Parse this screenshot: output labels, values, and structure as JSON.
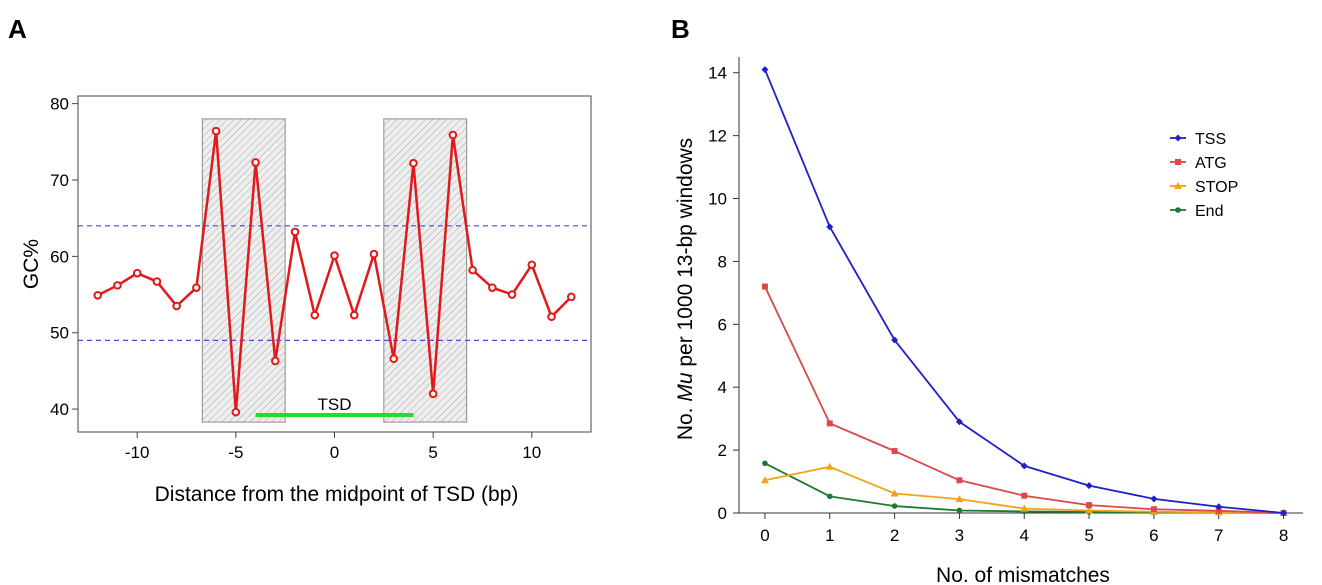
{
  "chart_data": [
    {
      "panel": "A",
      "type": "line",
      "xlabel": "Distance from the midpoint of TSD (bp)",
      "ylabel": "GC%",
      "xlim": [
        -13,
        13
      ],
      "ylim": [
        37,
        81
      ],
      "xticks": [
        -10,
        -5,
        0,
        5,
        10
      ],
      "yticks": [
        40,
        50,
        60,
        70,
        80
      ],
      "x": [
        -12,
        -11,
        -10,
        -9,
        -8,
        -7,
        -6,
        -5,
        -4,
        -3,
        -2,
        -1,
        0,
        1,
        2,
        3,
        4,
        5,
        6,
        7,
        8,
        9,
        10,
        11,
        12
      ],
      "series": [
        {
          "values": [
            54.9,
            56.2,
            57.8,
            56.7,
            53.5,
            55.9,
            76.4,
            39.6,
            72.3,
            46.3,
            63.2,
            52.3,
            60.1,
            52.3,
            60.3,
            46.6,
            72.2,
            42.0,
            75.9,
            58.2,
            55.9,
            55.0,
            58.9,
            52.1,
            54.7
          ],
          "color": "#e01a1a"
        }
      ],
      "reference_lines": [
        64,
        49
      ],
      "reference_color": "#4a4ae0",
      "highlight_regions": [
        [
          -6.7,
          -2.5
        ],
        [
          2.5,
          6.7
        ]
      ],
      "tsd_bar": {
        "label": "TSD",
        "x": [
          -4,
          4
        ],
        "color": "#22dd22"
      },
      "grid": false
    },
    {
      "panel": "B",
      "type": "line",
      "xlabel": "No. of mismatches",
      "ylabel_parts": [
        "No. ",
        "Mu",
        " per 1000 13-bp windows"
      ],
      "xlim": [
        -0.4,
        8.3
      ],
      "ylim": [
        0,
        14.5
      ],
      "xticks": [
        0,
        1,
        2,
        3,
        4,
        5,
        6,
        7,
        8
      ],
      "yticks": [
        0,
        2,
        4,
        6,
        8,
        10,
        12,
        14
      ],
      "x": [
        0,
        1,
        2,
        3,
        4,
        5,
        6,
        7,
        8
      ],
      "legend_position": "top-right",
      "grid": false,
      "series": [
        {
          "name": "TSS",
          "color": "#1f1fcc",
          "marker": "diamond",
          "values": [
            14.1,
            9.1,
            5.5,
            2.9,
            1.5,
            0.87,
            0.45,
            0.2,
            0.0
          ]
        },
        {
          "name": "ATG",
          "color": "#d94a4a",
          "marker": "square",
          "values": [
            7.2,
            2.85,
            1.97,
            1.04,
            0.55,
            0.25,
            0.12,
            0.07,
            0.0
          ]
        },
        {
          "name": "STOP",
          "color": "#f2a31a",
          "marker": "triangle",
          "values": [
            1.04,
            1.47,
            0.62,
            0.44,
            0.14,
            0.08,
            0.04,
            0.02,
            0.0
          ]
        },
        {
          "name": "End",
          "color": "#1e7a30",
          "marker": "circle",
          "values": [
            1.58,
            0.53,
            0.22,
            0.08,
            0.05,
            0.03,
            0.02,
            0.01,
            0.0
          ]
        }
      ]
    }
  ],
  "panels": {
    "a": "A",
    "b": "B"
  }
}
